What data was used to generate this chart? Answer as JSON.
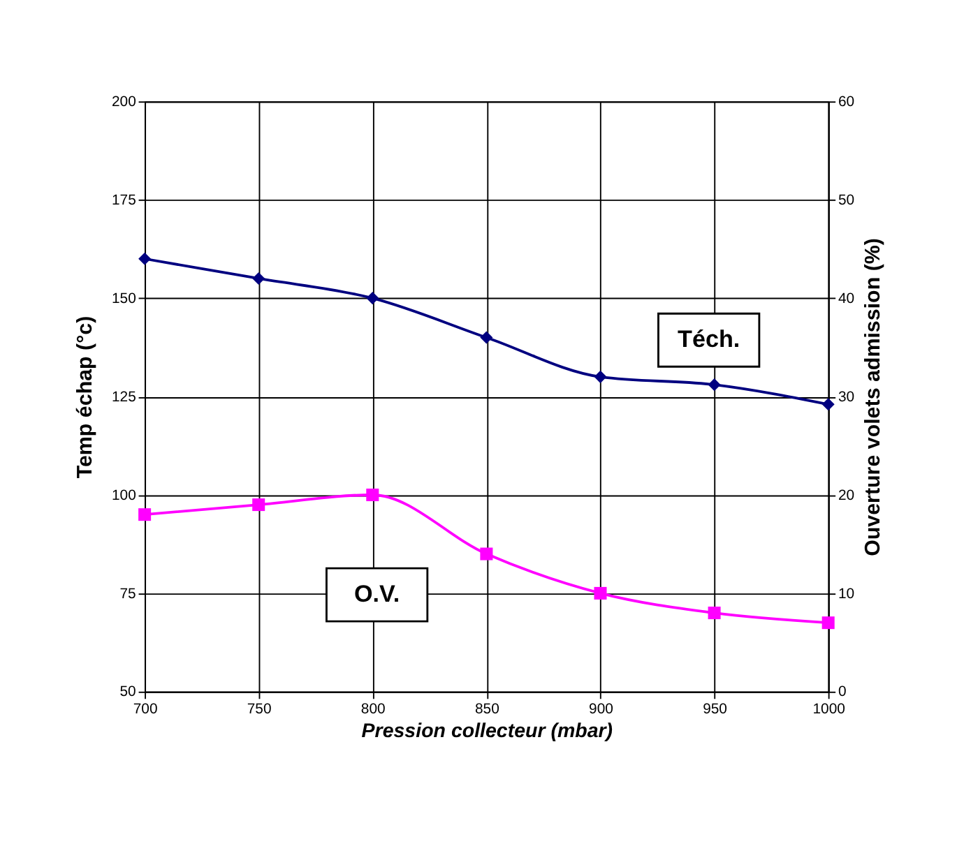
{
  "chart_data": {
    "type": "line",
    "xlabel": "Pression collecteur (mbar)",
    "ylabel": "Temp échap (°c)",
    "y2label": "Ouverture volets admission (%)",
    "x": [
      700,
      750,
      800,
      850,
      900,
      950,
      1000
    ],
    "xlim": [
      700,
      1000
    ],
    "xticks": [
      700,
      750,
      800,
      850,
      900,
      950,
      1000
    ],
    "ylim": [
      50,
      200
    ],
    "yticks": [
      50,
      75,
      100,
      125,
      150,
      175,
      200
    ],
    "y2lim": [
      0,
      60
    ],
    "y2ticks": [
      0,
      10,
      20,
      30,
      40,
      50,
      60
    ],
    "grid": true,
    "legend": false,
    "line_style": "solid",
    "series": [
      {
        "name": "Téch.",
        "color": "#000080",
        "marker": "diamond",
        "values": [
          160,
          155,
          150,
          140,
          130,
          128,
          123
        ]
      },
      {
        "name": "O.V.",
        "color": "#ff00ff",
        "marker": "square",
        "axis": "y2",
        "values": [
          18,
          19,
          20,
          14,
          10,
          8,
          7
        ]
      }
    ]
  }
}
